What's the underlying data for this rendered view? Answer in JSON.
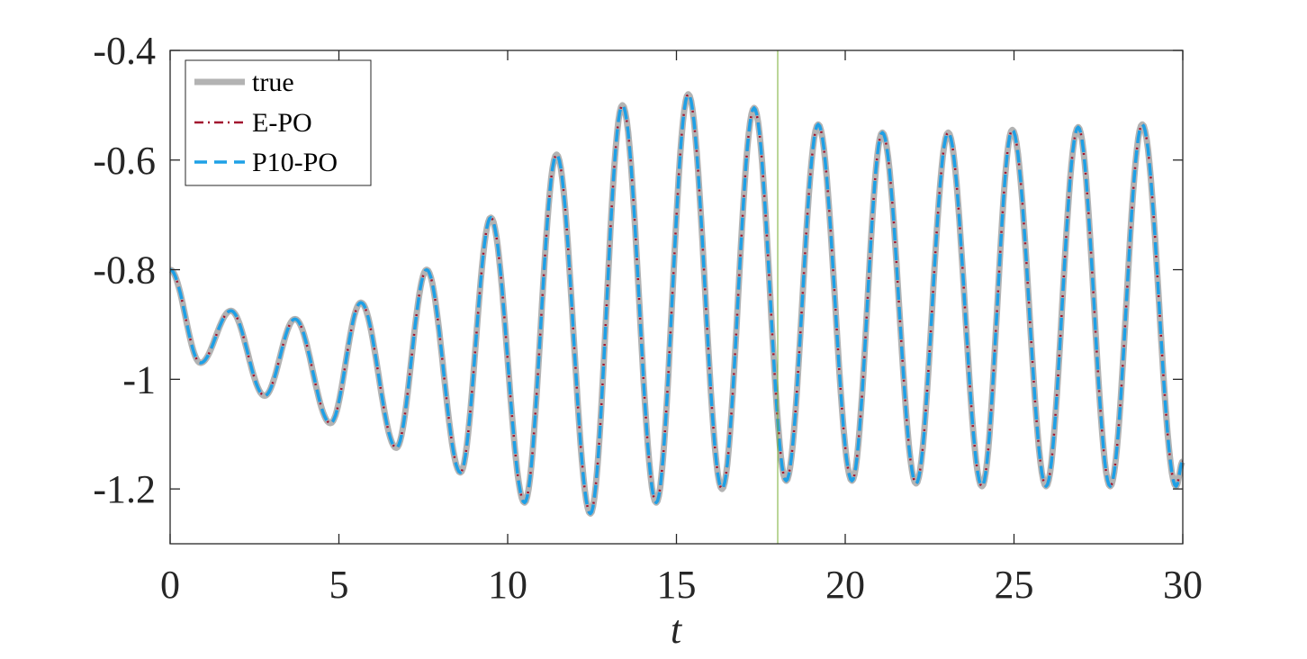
{
  "chart_data": {
    "type": "line",
    "title": "",
    "xlabel": "t",
    "ylabel": "",
    "xlim": [
      0,
      30
    ],
    "ylim": [
      -1.3,
      -0.4
    ],
    "xticks": [
      0,
      5,
      10,
      15,
      20,
      25,
      30
    ],
    "xtick_labels": [
      "0",
      "5",
      "10",
      "15",
      "20",
      "25",
      "30"
    ],
    "yticks": [
      -0.4,
      -0.6,
      -0.8,
      -1,
      -1.2
    ],
    "ytick_labels": [
      "-0.4",
      "-0.6",
      "-0.8",
      "-1",
      "-1.2"
    ],
    "grid": false,
    "legend": "top-left",
    "vertical_marker_x": 18,
    "vertical_marker_color": "#77ac30",
    "extrema": {
      "t": [
        0,
        0.9,
        1.8,
        2.8,
        3.7,
        4.75,
        5.65,
        6.7,
        7.6,
        8.6,
        9.5,
        10.5,
        11.45,
        12.45,
        13.4,
        14.4,
        15.35,
        16.35,
        17.3,
        18.25,
        19.2,
        20.2,
        21.1,
        22.1,
        23.05,
        24.05,
        24.95,
        25.95,
        26.9,
        27.85,
        28.8,
        29.8,
        30
      ],
      "y": [
        -0.8,
        -0.97,
        -0.875,
        -1.03,
        -0.89,
        -1.08,
        -0.86,
        -1.125,
        -0.8,
        -1.17,
        -0.705,
        -1.225,
        -0.59,
        -1.245,
        -0.5,
        -1.225,
        -0.48,
        -1.2,
        -0.505,
        -1.185,
        -0.535,
        -1.185,
        -0.55,
        -1.19,
        -0.55,
        -1.195,
        -0.545,
        -1.195,
        -0.54,
        -1.195,
        -0.535,
        -1.195,
        -1.15
      ]
    },
    "series": [
      {
        "name": "true",
        "color": "#b3b3b3",
        "style": "solid"
      },
      {
        "name": "E-PO",
        "color": "#a2142f",
        "style": "dashdot"
      },
      {
        "name": "P10-PO",
        "color": "#1ea0e6",
        "style": "dashed"
      }
    ]
  }
}
